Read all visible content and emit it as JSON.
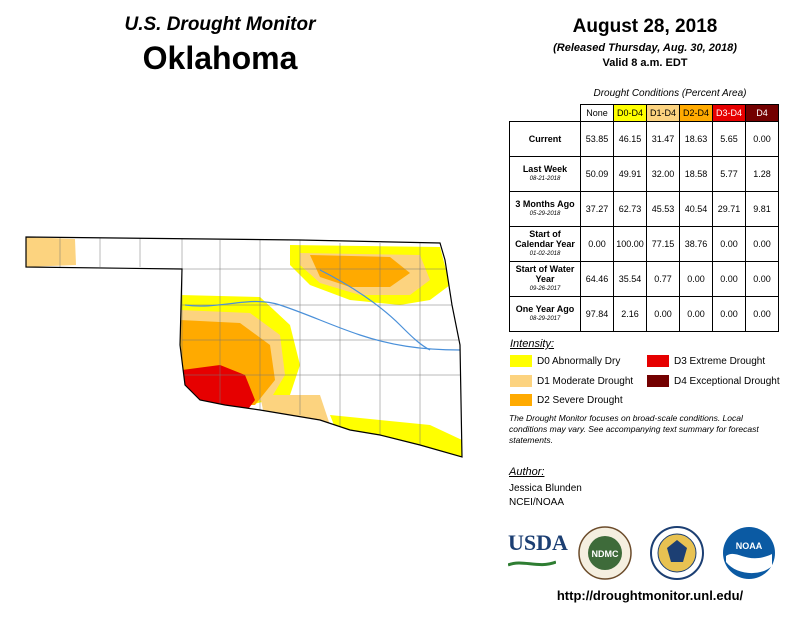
{
  "header": {
    "brand": "U.S. Drought Monitor",
    "state": "Oklahoma",
    "date": "August 28, 2018",
    "released": "(Released Thursday, Aug. 30, 2018)",
    "valid": "Valid 8 a.m. EDT"
  },
  "table": {
    "caption": "Drought Conditions (Percent Area)",
    "columns": [
      {
        "label": "None",
        "color": "#ffffff"
      },
      {
        "label": "D0-D4",
        "color": "#ffff00"
      },
      {
        "label": "D1-D4",
        "color": "#fcd37f"
      },
      {
        "label": "D2-D4",
        "color": "#ffaa00"
      },
      {
        "label": "D3-D4",
        "color": "#e60000"
      },
      {
        "label": "D4",
        "color": "#730000"
      }
    ],
    "rows": [
      {
        "label": "Current",
        "date": "",
        "values": [
          "53.85",
          "46.15",
          "31.47",
          "18.63",
          "5.65",
          "0.00"
        ]
      },
      {
        "label": "Last Week",
        "date": "08-21-2018",
        "values": [
          "50.09",
          "49.91",
          "32.00",
          "18.58",
          "5.77",
          "1.28"
        ]
      },
      {
        "label": "3 Months Ago",
        "date": "05-29-2018",
        "values": [
          "37.27",
          "62.73",
          "45.53",
          "40.54",
          "29.71",
          "9.81"
        ]
      },
      {
        "label": "Start of Calendar Year",
        "date": "01-02-2018",
        "values": [
          "0.00",
          "100.00",
          "77.15",
          "38.76",
          "0.00",
          "0.00"
        ]
      },
      {
        "label": "Start of Water Year",
        "date": "09-26-2017",
        "values": [
          "64.46",
          "35.54",
          "0.77",
          "0.00",
          "0.00",
          "0.00"
        ]
      },
      {
        "label": "One Year Ago",
        "date": "08-29-2017",
        "values": [
          "97.84",
          "2.16",
          "0.00",
          "0.00",
          "0.00",
          "0.00"
        ]
      }
    ]
  },
  "legend": {
    "title": "Intensity:",
    "items": [
      {
        "label": "D0 Abnormally Dry",
        "color": "#ffff00"
      },
      {
        "label": "D1 Moderate Drought",
        "color": "#fcd37f"
      },
      {
        "label": "D2 Severe Drought",
        "color": "#ffaa00"
      },
      {
        "label": "D3 Extreme Drought",
        "color": "#e60000"
      },
      {
        "label": "D4 Exceptional Drought",
        "color": "#730000"
      }
    ]
  },
  "note": "The Drought Monitor focuses on broad-scale conditions. Local conditions may vary. See accompanying text summary for forecast statements.",
  "author": {
    "title": "Author:",
    "name": "Jessica Blunden",
    "org": "NCEI/NOAA"
  },
  "logos": {
    "usda": "USDA",
    "ndmc": "NDMC",
    "noaa": "NOAA"
  },
  "url": "http://droughtmonitor.unl.edu/",
  "colors": {
    "d0": "#ffff00",
    "d1": "#fcd37f",
    "d2": "#ffaa00",
    "d3": "#e60000",
    "river": "#4a90d9"
  }
}
